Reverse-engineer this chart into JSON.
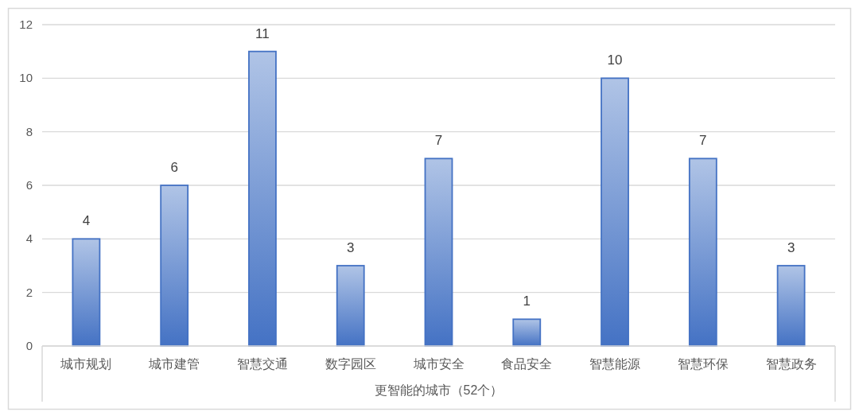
{
  "chart_data": {
    "type": "bar",
    "xlabel": "更智能的城市（52个）",
    "categories": [
      "城市规划",
      "城市建管",
      "智慧交通",
      "数字园区",
      "城市安全",
      "食品安全",
      "智慧能源",
      "智慧环保",
      "智慧政务"
    ],
    "values": [
      4,
      6,
      11,
      3,
      7,
      1,
      10,
      7,
      3
    ],
    "color": "#4472c4",
    "ylim": [
      0,
      12
    ],
    "yticks": [
      0,
      2,
      4,
      6,
      8,
      10,
      12
    ],
    "grid": "y",
    "data_labels": true
  }
}
